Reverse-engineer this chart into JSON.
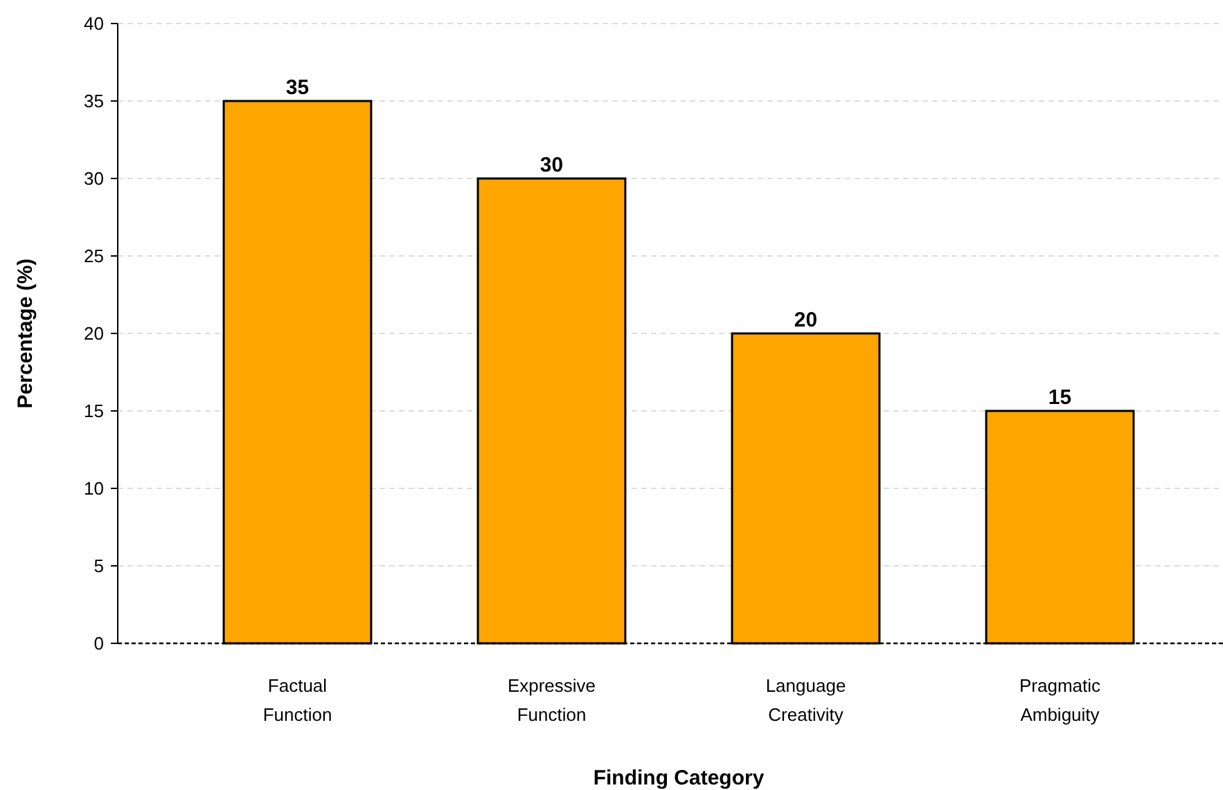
{
  "chart_data": {
    "type": "bar",
    "xlabel": "Finding Category",
    "ylabel": "Percentage (%)",
    "categories": [
      "Factual Function",
      "Expressive Function",
      "Language Creativity",
      "Pragmatic Ambiguity"
    ],
    "values": [
      35,
      30,
      20,
      15
    ],
    "color": "#ffa500",
    "ylim": [
      0,
      40
    ],
    "yticks": [
      0,
      5,
      10,
      15,
      20,
      25,
      30,
      35,
      40
    ],
    "grid": "y",
    "data_labels": true
  }
}
